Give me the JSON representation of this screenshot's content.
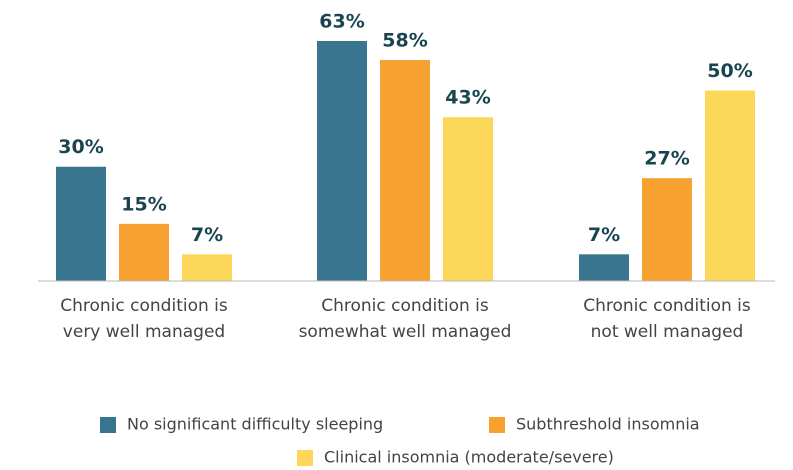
{
  "chart_data": {
    "type": "bar",
    "categories": [
      [
        "Chronic condition is",
        "very well managed"
      ],
      [
        "Chronic condition is",
        "somewhat well managed"
      ],
      [
        "Chronic condition is",
        "not well managed"
      ]
    ],
    "series": [
      {
        "name": "No significant difficulty sleeping",
        "color": "#3a758f",
        "values": [
          30,
          63,
          7
        ],
        "value_labels": [
          "30%",
          "63%",
          "7%"
        ]
      },
      {
        "name": "Subthreshold insomnia",
        "color": "#f7a130",
        "values": [
          15,
          58,
          27
        ],
        "value_labels": [
          "15%",
          "58%",
          "27%"
        ]
      },
      {
        "name": "Clinical insomnia (moderate/severe)",
        "color": "#fdd75a",
        "values": [
          7,
          43,
          50
        ],
        "value_labels": [
          "7%",
          "43%",
          "50%"
        ]
      }
    ]
  }
}
